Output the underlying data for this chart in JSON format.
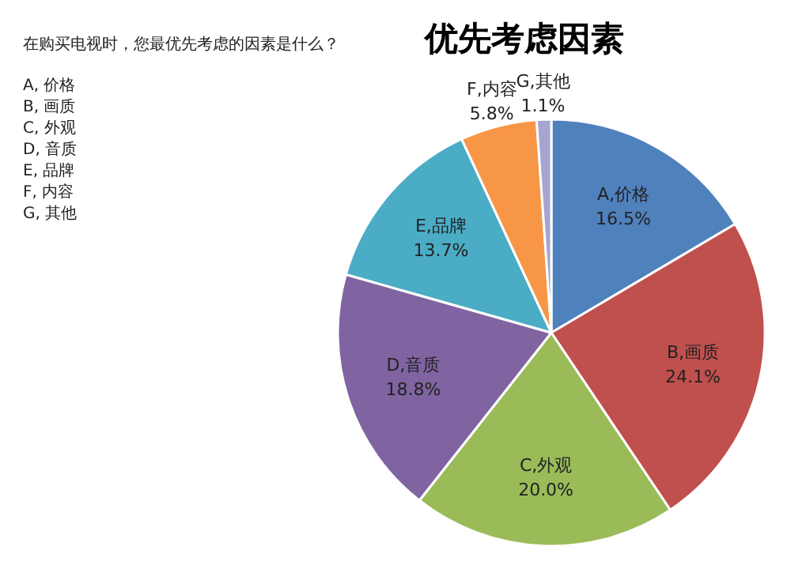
{
  "chart_data": {
    "type": "pie",
    "title": "优先考虑因素",
    "categories": [
      "A,价格",
      "B,画质",
      "C,外观",
      "D,音质",
      "E,品牌",
      "F,内容",
      "G,其他"
    ],
    "values": [
      16.5,
      24.1,
      20.0,
      18.8,
      13.7,
      5.8,
      1.1
    ],
    "colors": [
      "#4f81bd",
      "#c0504d",
      "#9bbb59",
      "#8064a2",
      "#4bacc6",
      "#f79646",
      "#a5a5d0"
    ],
    "value_labels": [
      "16.5%",
      "24.1%",
      "20.0%",
      "18.8%",
      "13.7%",
      "5.8%",
      "1.1%"
    ],
    "annotations": [
      "在购买电视时，您最优先考虑的因素是什么？",
      "A, 价格",
      "B, 画质",
      "C, 外观",
      "D, 音质",
      "E, 品牌",
      "F, 内容",
      "G, 其他"
    ]
  }
}
